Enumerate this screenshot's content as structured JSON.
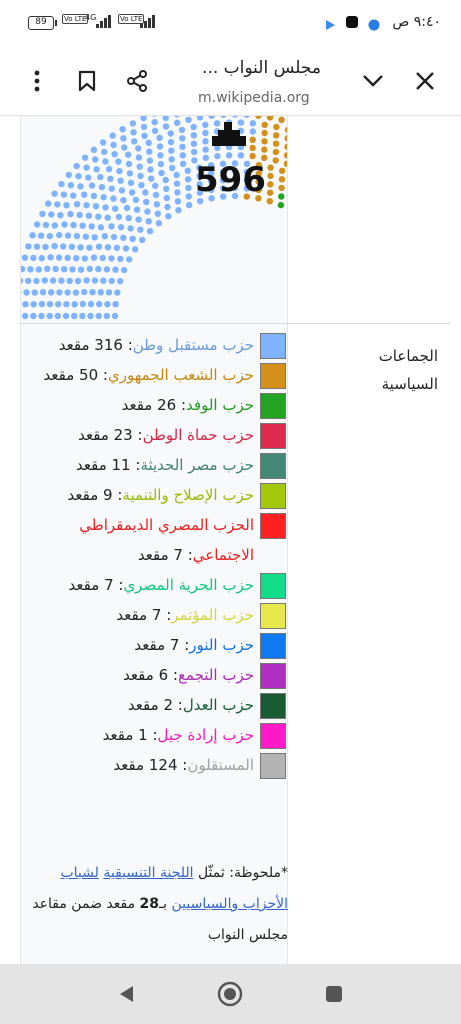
{
  "status_bar": {
    "time": "٩:٤٠ ص",
    "battery": "89",
    "net1": "Vo LTE",
    "net2": "4G",
    "net3": "Vo LTE"
  },
  "toolbar": {
    "title": "مجلس النواب ...",
    "url": "m.wikipedia.org",
    "icons": [
      "close-icon",
      "chevron-down-icon",
      "share-icon",
      "bookmark-icon",
      "more-vert-icon"
    ]
  },
  "chart": {
    "total_seats": "596"
  },
  "chart_data": {
    "type": "parliament",
    "total": 596,
    "series": [
      {
        "name": "حزب مستقبل وطن",
        "seats": 316,
        "color": "#80b3ff"
      },
      {
        "name": "حزب الشعب الجمهوري",
        "seats": 50,
        "color": "#d4901a"
      },
      {
        "name": "حزب الوفد",
        "seats": 26,
        "color": "#22a322"
      },
      {
        "name": "حزب حماة الوطن",
        "seats": 23,
        "color": "#dc2b4c"
      },
      {
        "name": "حزب مصر الحديثة",
        "seats": 11,
        "color": "#448878"
      },
      {
        "name": "حزب الإصلاح والتنمية",
        "seats": 9,
        "color": "#a4c80c"
      },
      {
        "name": "الحزب المصري الديمقراطي الاجتماعي",
        "seats": 7,
        "color": "#ff2121"
      },
      {
        "name": "حزب الحرية المصري",
        "seats": 7,
        "color": "#11dd88"
      },
      {
        "name": "حزب المؤتمر",
        "seats": 7,
        "color": "#e8e84c"
      },
      {
        "name": "حزب النور",
        "seats": 7,
        "color": "#0f79f2"
      },
      {
        "name": "حزب التجمع",
        "seats": 6,
        "color": "#b02ec0"
      },
      {
        "name": "حزب العدل",
        "seats": 2,
        "color": "#195c34"
      },
      {
        "name": "حزب إرادة جيل",
        "seats": 1,
        "color": "#ff19c8"
      },
      {
        "name": "المستقلون",
        "seats": 124,
        "color": "#b3b3b3"
      }
    ]
  },
  "groups_label": "الجماعات السياسية",
  "legend": [
    {
      "name": "حزب مستقبل وطن",
      "seats": ": 316 مقعد",
      "color": "#80b3ff",
      "text_color": "#6a9ad8"
    },
    {
      "name": "حزب الشعب الجمهوري",
      "seats": ": 50 مقعد",
      "color": "#d4901a",
      "text_color": "#c58712"
    },
    {
      "name": "حزب الوفد",
      "seats": ": 26 مقعد",
      "color": "#22a322",
      "text_color": "#1f9a1f"
    },
    {
      "name": "حزب حماة الوطن",
      "seats": ": 23 مقعد",
      "color": "#dc2b4c",
      "text_color": "#d02848"
    },
    {
      "name": "حزب مصر الحديثة",
      "seats": ": 11 مقعد",
      "color": "#448878",
      "text_color": "#3f8272"
    },
    {
      "name": "حزب الإصلاح والتنمية",
      "seats": ": 9 مقعد",
      "color": "#a4c80c",
      "text_color": "#98bb0a"
    },
    {
      "name": "الحزب المصري الديمقراطي الاجتماعي",
      "seats": ": 7 مقعد",
      "color": "#ff2121",
      "text_color": "#e82020"
    },
    {
      "name": "حزب الحرية المصري",
      "seats": ": 7 مقعد",
      "color": "#11dd88",
      "text_color": "#10c87c"
    },
    {
      "name": "حزب المؤتمر",
      "seats": ": 7 مقعد",
      "color": "#e8e84c",
      "text_color": "#d4d43c"
    },
    {
      "name": "حزب النور",
      "seats": ": 7 مقعد",
      "color": "#0f79f2",
      "text_color": "#0f6fe0"
    },
    {
      "name": "حزب التجمع",
      "seats": ": 6 مقعد",
      "color": "#b02ec0",
      "text_color": "#a82ab8"
    },
    {
      "name": "حزب العدل",
      "seats": ": 2 مقعد",
      "color": "#195c34",
      "text_color": "#195c34"
    },
    {
      "name": "حزب إرادة جيل",
      "seats": ": 1 مقعد",
      "color": "#ff19c8",
      "text_color": "#f018bc"
    },
    {
      "name": "المستقلون",
      "seats": ": 124 مقعد",
      "color": "#b3b3b3",
      "text_color": "#a0a0a0"
    }
  ],
  "note": {
    "prefix": "*ملحوظة: ثمثّل",
    "link1": "اللجنة التنسيقية",
    "link2": "لشباب الأحزاب والسياسيين",
    "bold": "28",
    "middle": " بـ",
    "suffix": " مقعد ضمن مقاعد مجلس النواب"
  },
  "nav": {
    "icons": [
      "back-icon",
      "home-icon",
      "recents-icon"
    ]
  }
}
